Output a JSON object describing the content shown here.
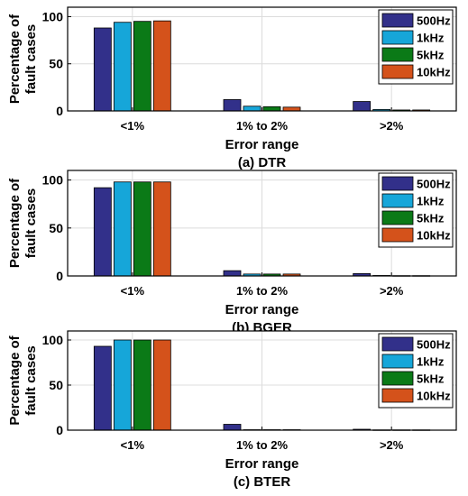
{
  "chart_data": [
    {
      "type": "bar",
      "caption": "(a) DTR",
      "categories": [
        "<1%",
        "1% to 2%",
        ">2%"
      ],
      "xlabel": "Error range",
      "ylabel": [
        "Percentage of",
        "fault cases"
      ],
      "ylim": [
        0,
        110
      ],
      "yticks": [
        0,
        50,
        100
      ],
      "grid": true,
      "legend_position": "top-right",
      "series": [
        {
          "name": "500Hz",
          "color": "#32308a",
          "values": [
            88,
            12,
            10
          ]
        },
        {
          "name": "1kHz",
          "color": "#16a6d9",
          "values": [
            94,
            5,
            1.5
          ]
        },
        {
          "name": "5kHz",
          "color": "#0b7a17",
          "values": [
            95,
            4.5,
            1
          ]
        },
        {
          "name": "10kHz",
          "color": "#d4521b",
          "values": [
            95.5,
            4,
            1
          ]
        }
      ]
    },
    {
      "type": "bar",
      "caption": "(b) BGER",
      "categories": [
        "<1%",
        "1% to 2%",
        ">2%"
      ],
      "xlabel": "Error range",
      "ylabel": [
        "Percentage of",
        "fault cases"
      ],
      "ylim": [
        0,
        110
      ],
      "yticks": [
        0,
        50,
        100
      ],
      "grid": true,
      "legend_position": "top-right",
      "series": [
        {
          "name": "500Hz",
          "color": "#32308a",
          "values": [
            92,
            5.5,
            2.5
          ]
        },
        {
          "name": "1kHz",
          "color": "#16a6d9",
          "values": [
            98,
            2,
            0.5
          ]
        },
        {
          "name": "5kHz",
          "color": "#0b7a17",
          "values": [
            98,
            2,
            0.3
          ]
        },
        {
          "name": "10kHz",
          "color": "#d4521b",
          "values": [
            98,
            2,
            0.3
          ]
        }
      ]
    },
    {
      "type": "bar",
      "caption": "(c) BTER",
      "categories": [
        "<1%",
        "1% to 2%",
        ">2%"
      ],
      "xlabel": "Error range",
      "ylabel": [
        "Percentage of",
        "fault cases"
      ],
      "ylim": [
        0,
        110
      ],
      "yticks": [
        0,
        50,
        100
      ],
      "grid": true,
      "legend_position": "top-right",
      "series": [
        {
          "name": "500Hz",
          "color": "#32308a",
          "values": [
            93,
            6.5,
            1
          ]
        },
        {
          "name": "1kHz",
          "color": "#16a6d9",
          "values": [
            100,
            0.5,
            0.3
          ]
        },
        {
          "name": "5kHz",
          "color": "#0b7a17",
          "values": [
            100,
            0.5,
            0.3
          ]
        },
        {
          "name": "10kHz",
          "color": "#d4521b",
          "values": [
            100,
            0.5,
            0.3
          ]
        }
      ]
    }
  ]
}
